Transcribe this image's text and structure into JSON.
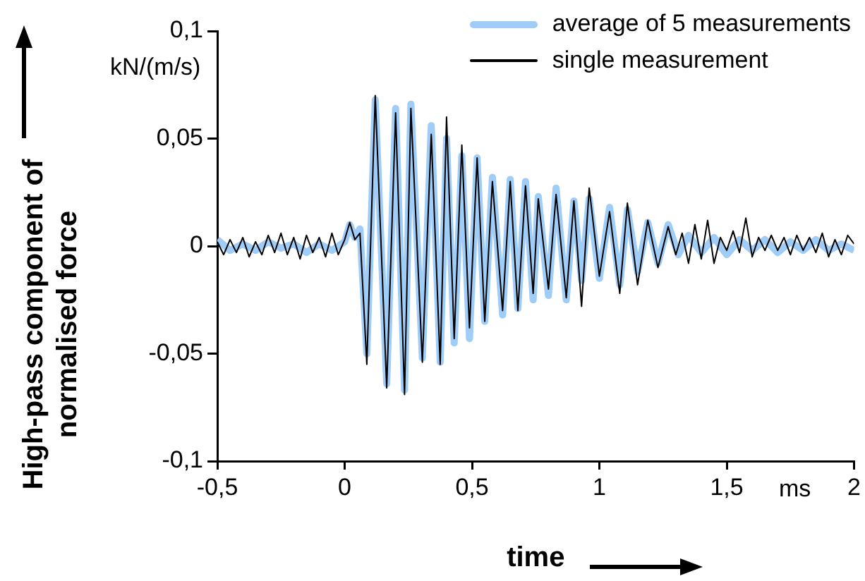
{
  "chart_data": {
    "type": "line",
    "ylabel": "High-pass component of normalised force",
    "xlabel": "time",
    "annotations": [
      "kN/(m/s)",
      "ms"
    ],
    "xlim": [
      -0.5,
      2
    ],
    "xticks": [
      {
        "value": -0.5,
        "label": "-0,5"
      },
      0,
      {
        "value": 0.5,
        "label": "0,5"
      },
      1,
      {
        "value": 1.5,
        "label": "1,5"
      },
      2
    ],
    "ylim": [
      -0.1,
      0.1
    ],
    "yticks": [
      {
        "value": -0.1,
        "label": "-0,1"
      },
      {
        "value": -0.05,
        "label": "-0,05"
      },
      0,
      {
        "value": 0.05,
        "label": "0,05"
      },
      {
        "value": 0.1,
        "label": "0,1"
      }
    ],
    "grid": false,
    "legend": "top right",
    "marker": "none",
    "series": [
      {
        "name": "average of 5 measurements",
        "color": "#9fcdf7",
        "x": [
          -0.5,
          -0.45,
          -0.4,
          -0.35,
          -0.3,
          -0.25,
          -0.2,
          -0.15,
          -0.1,
          -0.05,
          0,
          0.02,
          0.04,
          0.06,
          0.087,
          0.12,
          0.165,
          0.2,
          0.235,
          0.26,
          0.305,
          0.34,
          0.375,
          0.4,
          0.43,
          0.46,
          0.49,
          0.52,
          0.55,
          0.58,
          0.62,
          0.65,
          0.68,
          0.71,
          0.74,
          0.76,
          0.8,
          0.83,
          0.87,
          0.9,
          0.93,
          0.96,
          1.0,
          1.04,
          1.08,
          1.11,
          1.15,
          1.19,
          1.23,
          1.27,
          1.31,
          1.35,
          1.4,
          1.45,
          1.5,
          1.55,
          1.6,
          1.65,
          1.7,
          1.75,
          1.8,
          1.85,
          1.9,
          1.95,
          2
        ],
        "values": [
          0.003,
          -0.002,
          0.001,
          -0.002,
          0.002,
          -0.001,
          0.001,
          -0.003,
          0.001,
          -0.002,
          0.002,
          0.01,
          0.004,
          0.008,
          -0.05,
          0.068,
          -0.064,
          0.064,
          -0.067,
          0.066,
          -0.052,
          0.056,
          -0.054,
          0.05,
          -0.045,
          0.042,
          -0.043,
          0.041,
          -0.035,
          0.032,
          -0.032,
          0.031,
          -0.029,
          0.03,
          -0.025,
          0.023,
          -0.023,
          0.027,
          -0.025,
          0.021,
          -0.016,
          0.022,
          -0.015,
          0.018,
          -0.018,
          0.017,
          -0.012,
          0.011,
          -0.008,
          0.01,
          -0.004,
          0.005,
          -0.003,
          0.004,
          -0.004,
          0.003,
          -0.002,
          0.003,
          -0.003,
          0.002,
          -0.002,
          0.003,
          -0.002,
          0.001,
          -0.002
        ]
      },
      {
        "name": "single measurement",
        "color": "#000000",
        "x": [
          -0.5,
          -0.475,
          -0.45,
          -0.425,
          -0.4,
          -0.375,
          -0.35,
          -0.325,
          -0.3,
          -0.275,
          -0.25,
          -0.225,
          -0.2,
          -0.175,
          -0.15,
          -0.125,
          -0.1,
          -0.075,
          -0.05,
          -0.025,
          0,
          0.02,
          0.04,
          0.06,
          0.087,
          0.12,
          0.165,
          0.2,
          0.235,
          0.26,
          0.305,
          0.34,
          0.375,
          0.4,
          0.43,
          0.46,
          0.49,
          0.52,
          0.55,
          0.58,
          0.62,
          0.65,
          0.68,
          0.71,
          0.74,
          0.76,
          0.8,
          0.83,
          0.87,
          0.9,
          0.93,
          0.96,
          1.0,
          1.04,
          1.08,
          1.11,
          1.15,
          1.19,
          1.23,
          1.27,
          1.3,
          1.325,
          1.35,
          1.375,
          1.4,
          1.425,
          1.45,
          1.475,
          1.5,
          1.525,
          1.55,
          1.575,
          1.6,
          1.625,
          1.65,
          1.675,
          1.7,
          1.725,
          1.75,
          1.775,
          1.8,
          1.825,
          1.85,
          1.875,
          1.9,
          1.925,
          1.95,
          1.975,
          2
        ],
        "values": [
          0.002,
          -0.004,
          0.003,
          -0.003,
          0.004,
          -0.005,
          0.002,
          -0.004,
          0.005,
          -0.003,
          0.006,
          -0.004,
          0.004,
          -0.006,
          0.005,
          -0.003,
          0.004,
          -0.005,
          0.006,
          -0.004,
          0.003,
          0.011,
          0.003,
          0.006,
          -0.055,
          0.07,
          -0.066,
          0.062,
          -0.069,
          0.064,
          -0.054,
          0.052,
          -0.055,
          0.06,
          -0.043,
          0.047,
          -0.038,
          0.041,
          -0.035,
          0.03,
          -0.03,
          0.03,
          -0.03,
          0.028,
          -0.022,
          0.022,
          -0.02,
          0.024,
          -0.024,
          0.021,
          -0.028,
          0.027,
          -0.014,
          0.016,
          -0.022,
          0.02,
          -0.018,
          0.012,
          -0.01,
          0.009,
          -0.004,
          0.006,
          -0.008,
          0.01,
          -0.006,
          0.012,
          -0.008,
          0.004,
          -0.002,
          0.007,
          -0.003,
          0.013,
          -0.005,
          0.004,
          -0.002,
          0.005,
          -0.002,
          0.004,
          -0.004,
          0.005,
          -0.002,
          0.004,
          -0.003,
          0.006,
          -0.005,
          0.003,
          -0.004,
          0.005,
          0.001
        ]
      }
    ]
  }
}
